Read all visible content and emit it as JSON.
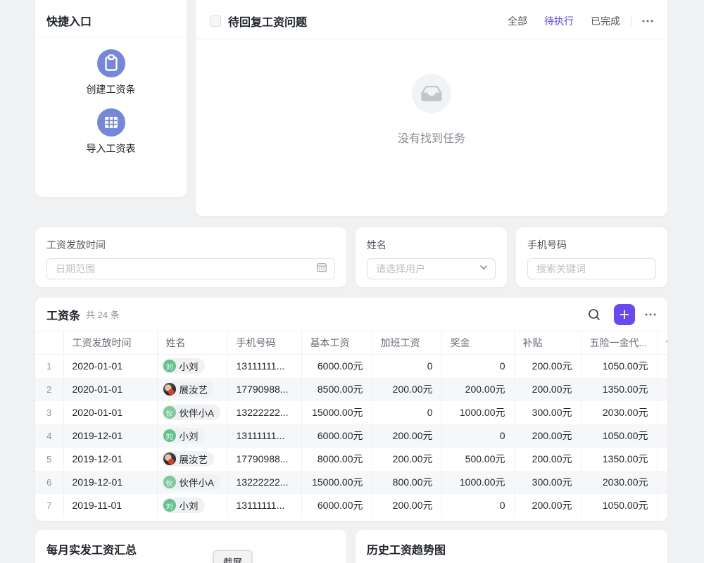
{
  "colors": {
    "accent": "#6848f0",
    "tab_active": "#5846f0",
    "quick_icon_bg": "#7587d8",
    "avatar_green_liu": "#62c28d",
    "avatar_green_huo": "#7fca9c",
    "row_stripe": "#f6f7f9"
  },
  "quick_entry": {
    "title": "快捷入口",
    "items": [
      {
        "icon": "clipboard-icon",
        "label": "创建工资条"
      },
      {
        "icon": "table-grid-icon",
        "label": "导入工资表"
      }
    ]
  },
  "tasks": {
    "title": "待回复工资问题",
    "tabs": [
      {
        "key": "all",
        "label": "全部",
        "active": false
      },
      {
        "key": "pending",
        "label": "待执行",
        "active": true
      },
      {
        "key": "done",
        "label": "已完成",
        "active": false
      }
    ],
    "empty_text": "没有找到任务"
  },
  "filters": [
    {
      "label": "工资发放时间",
      "placeholder": "日期范围",
      "icon": "calendar-icon"
    },
    {
      "label": "姓名",
      "placeholder": "请选择用户",
      "icon": "chevron-down-icon"
    },
    {
      "label": "手机号码",
      "placeholder": "搜索关键词"
    }
  ],
  "payroll_table": {
    "title": "工资条",
    "count_text": "共 24 条",
    "columns": [
      "",
      "工资发放时间",
      "姓名",
      "手机号码",
      "基本工资",
      "加班工资",
      "奖金",
      "补贴",
      "五险一金代...",
      "个"
    ],
    "rows": [
      {
        "index": "1",
        "date": "2020-01-01",
        "name": "小刘",
        "avatar_text": "刘",
        "avatar_type": "g1",
        "phone": "13111111...",
        "base": "6000.00元",
        "overtime": "0",
        "bonus": "0",
        "subsidy": "200.00元",
        "insurance": "1050.00元"
      },
      {
        "index": "2",
        "date": "2020-01-01",
        "name": "展汝艺",
        "avatar_text": "",
        "avatar_type": "photo",
        "phone": "17790988...",
        "base": "8500.00元",
        "overtime": "200.00元",
        "bonus": "200.00元",
        "subsidy": "200.00元",
        "insurance": "1350.00元"
      },
      {
        "index": "3",
        "date": "2020-01-01",
        "name": "伙伴小A",
        "avatar_text": "伙",
        "avatar_type": "g2",
        "phone": "13222222...",
        "base": "15000.00元",
        "overtime": "0",
        "bonus": "1000.00元",
        "subsidy": "300.00元",
        "insurance": "2030.00元"
      },
      {
        "index": "4",
        "date": "2019-12-01",
        "name": "小刘",
        "avatar_text": "刘",
        "avatar_type": "g1",
        "phone": "13111111...",
        "base": "6000.00元",
        "overtime": "200.00元",
        "bonus": "0",
        "subsidy": "200.00元",
        "insurance": "1050.00元"
      },
      {
        "index": "5",
        "date": "2019-12-01",
        "name": "展汝艺",
        "avatar_text": "",
        "avatar_type": "photo",
        "phone": "17790988...",
        "base": "8000.00元",
        "overtime": "200.00元",
        "bonus": "500.00元",
        "subsidy": "200.00元",
        "insurance": "1350.00元"
      },
      {
        "index": "6",
        "date": "2019-12-01",
        "name": "伙伴小A",
        "avatar_text": "伙",
        "avatar_type": "g2",
        "phone": "13222222...",
        "base": "15000.00元",
        "overtime": "800.00元",
        "bonus": "1000.00元",
        "subsidy": "300.00元",
        "insurance": "2030.00元"
      },
      {
        "index": "7",
        "date": "2019-11-01",
        "name": "小刘",
        "avatar_text": "刘",
        "avatar_type": "g1",
        "phone": "13111111...",
        "base": "6000.00元",
        "overtime": "200.00元",
        "bonus": "0",
        "subsidy": "200.00元",
        "insurance": "1050.00元"
      }
    ]
  },
  "bottom_cards": [
    {
      "title": "每月实发工资汇总"
    },
    {
      "title": "历史工资趋势图"
    }
  ],
  "tooltip": {
    "label": "截屏"
  }
}
